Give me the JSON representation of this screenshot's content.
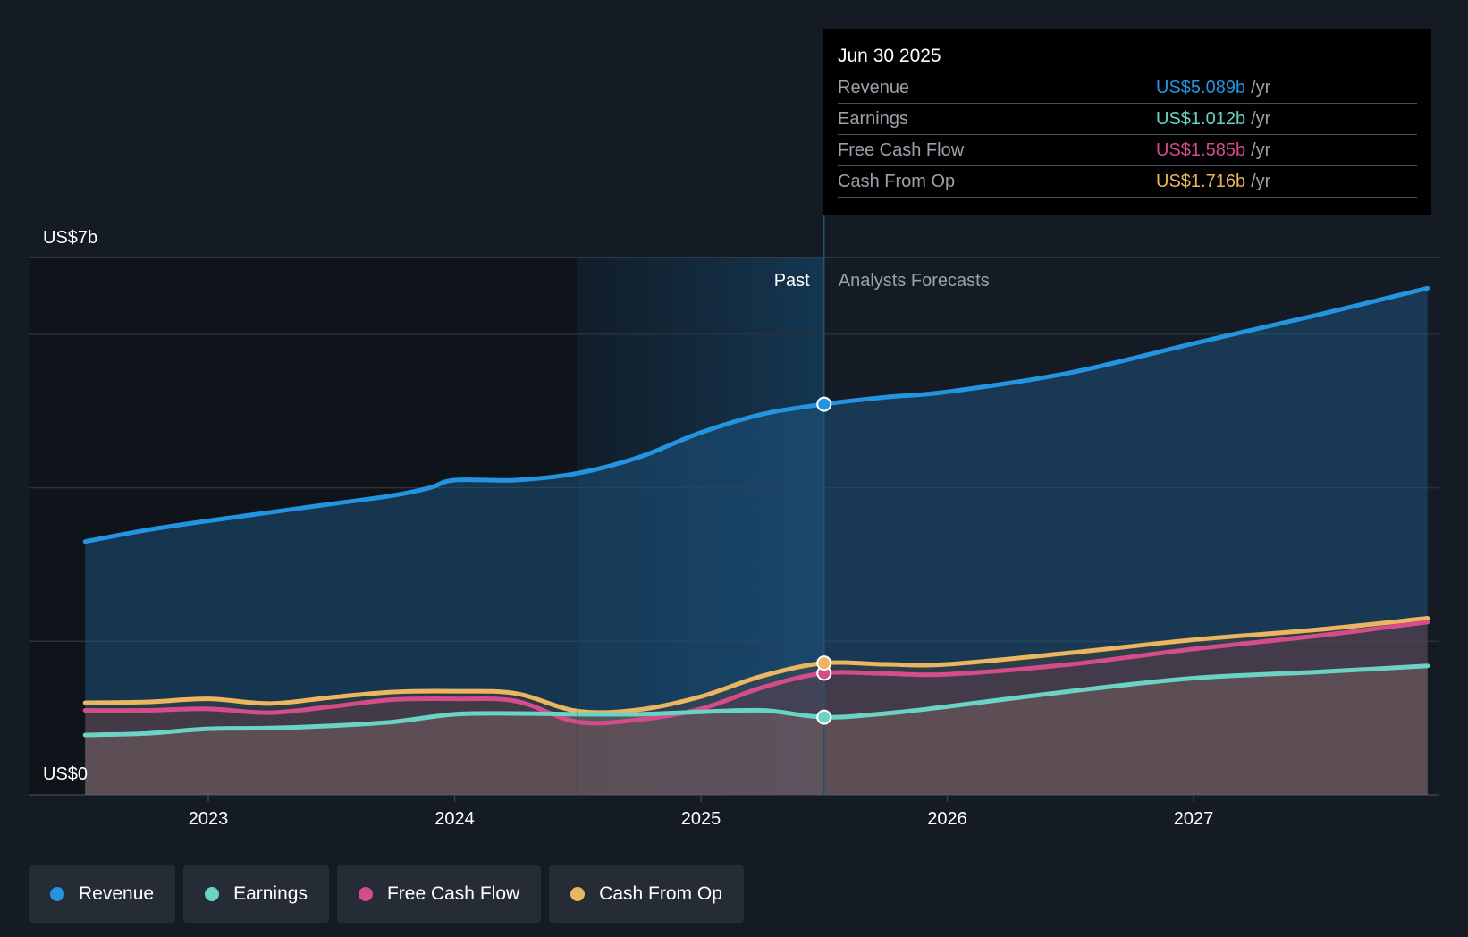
{
  "chart_data": {
    "type": "area",
    "y_axis": {
      "top_label": "US$7b",
      "bottom_label": "US$0",
      "ylim": [
        0,
        7
      ]
    },
    "x_axis": {
      "ticks": [
        "2023",
        "2024",
        "2025",
        "2026",
        "2027"
      ],
      "xlim": [
        2022.5,
        2027.95
      ]
    },
    "divider": {
      "x": 2025.5,
      "past_label": "Past",
      "forecast_label": "Analysts Forecasts",
      "shade_start": 2024.5
    },
    "series": [
      {
        "name": "Revenue",
        "color": "#2394df",
        "points": [
          [
            2022.5,
            3.3
          ],
          [
            2022.75,
            3.45
          ],
          [
            2023.0,
            3.57
          ],
          [
            2023.25,
            3.68
          ],
          [
            2023.5,
            3.79
          ],
          [
            2023.75,
            3.9
          ],
          [
            2023.9,
            4.0
          ],
          [
            2024.0,
            4.1
          ],
          [
            2024.25,
            4.1
          ],
          [
            2024.5,
            4.19
          ],
          [
            2024.75,
            4.4
          ],
          [
            2025.0,
            4.72
          ],
          [
            2025.25,
            4.96
          ],
          [
            2025.5,
            5.089
          ],
          [
            2025.75,
            5.18
          ],
          [
            2026.0,
            5.25
          ],
          [
            2026.5,
            5.5
          ],
          [
            2027.0,
            5.88
          ],
          [
            2027.5,
            6.25
          ],
          [
            2027.95,
            6.6
          ]
        ]
      },
      {
        "name": "Earnings",
        "color": "#6ad3c3",
        "points": [
          [
            2022.5,
            0.78
          ],
          [
            2022.75,
            0.8
          ],
          [
            2023.0,
            0.86
          ],
          [
            2023.25,
            0.87
          ],
          [
            2023.5,
            0.9
          ],
          [
            2023.75,
            0.95
          ],
          [
            2024.0,
            1.05
          ],
          [
            2024.25,
            1.06
          ],
          [
            2024.5,
            1.05
          ],
          [
            2024.75,
            1.05
          ],
          [
            2025.0,
            1.08
          ],
          [
            2025.25,
            1.1
          ],
          [
            2025.5,
            1.012
          ],
          [
            2025.75,
            1.06
          ],
          [
            2026.0,
            1.15
          ],
          [
            2026.5,
            1.35
          ],
          [
            2027.0,
            1.52
          ],
          [
            2027.5,
            1.6
          ],
          [
            2027.95,
            1.68
          ]
        ]
      },
      {
        "name": "Free Cash Flow",
        "color": "#d44c8a",
        "points": [
          [
            2022.5,
            1.1
          ],
          [
            2022.75,
            1.1
          ],
          [
            2023.0,
            1.12
          ],
          [
            2023.25,
            1.07
          ],
          [
            2023.5,
            1.15
          ],
          [
            2023.75,
            1.24
          ],
          [
            2024.0,
            1.25
          ],
          [
            2024.25,
            1.22
          ],
          [
            2024.5,
            0.95
          ],
          [
            2024.75,
            0.98
          ],
          [
            2025.0,
            1.12
          ],
          [
            2025.25,
            1.4
          ],
          [
            2025.5,
            1.585
          ],
          [
            2025.75,
            1.58
          ],
          [
            2026.0,
            1.57
          ],
          [
            2026.5,
            1.7
          ],
          [
            2027.0,
            1.9
          ],
          [
            2027.5,
            2.07
          ],
          [
            2027.95,
            2.25
          ]
        ]
      },
      {
        "name": "Cash From Op",
        "color": "#ebb65f",
        "points": [
          [
            2022.5,
            1.2
          ],
          [
            2022.75,
            1.21
          ],
          [
            2023.0,
            1.25
          ],
          [
            2023.25,
            1.19
          ],
          [
            2023.5,
            1.27
          ],
          [
            2023.75,
            1.34
          ],
          [
            2024.0,
            1.35
          ],
          [
            2024.25,
            1.32
          ],
          [
            2024.5,
            1.09
          ],
          [
            2024.75,
            1.11
          ],
          [
            2025.0,
            1.28
          ],
          [
            2025.25,
            1.55
          ],
          [
            2025.5,
            1.716
          ],
          [
            2025.75,
            1.7
          ],
          [
            2026.0,
            1.7
          ],
          [
            2026.5,
            1.85
          ],
          [
            2027.0,
            2.02
          ],
          [
            2027.5,
            2.15
          ],
          [
            2027.95,
            2.3
          ]
        ]
      }
    ]
  },
  "tooltip": {
    "date": "Jun 30 2025",
    "rows": [
      {
        "label": "Revenue",
        "value": "US$5.089b",
        "unit": "/yr",
        "color": "#2394df"
      },
      {
        "label": "Earnings",
        "value": "US$1.012b",
        "unit": "/yr",
        "color": "#6ad3c3"
      },
      {
        "label": "Free Cash Flow",
        "value": "US$1.585b",
        "unit": "/yr",
        "color": "#d44c8a"
      },
      {
        "label": "Cash From Op",
        "value": "US$1.716b",
        "unit": "/yr",
        "color": "#ebb65f"
      }
    ]
  },
  "legend": [
    {
      "label": "Revenue",
      "color": "#2394df"
    },
    {
      "label": "Earnings",
      "color": "#6ad3c3"
    },
    {
      "label": "Free Cash Flow",
      "color": "#d44c8a"
    },
    {
      "label": "Cash From Op",
      "color": "#ebb65f"
    }
  ]
}
